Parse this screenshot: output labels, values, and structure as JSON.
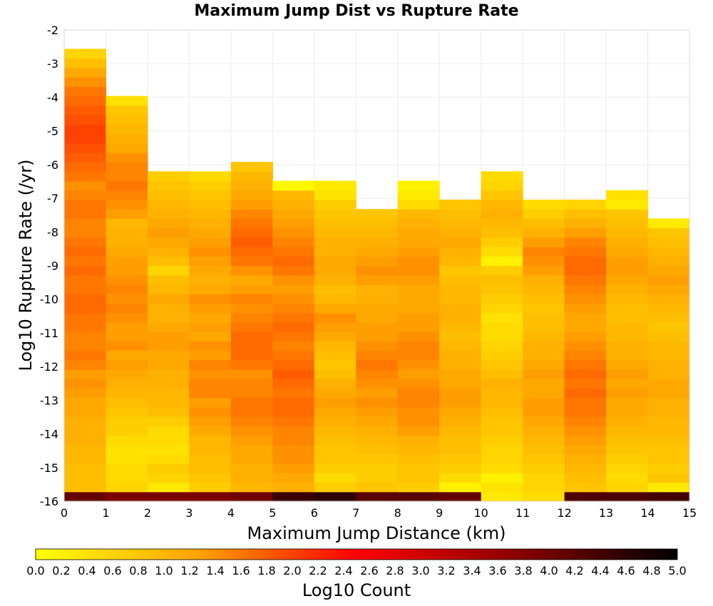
{
  "chart_data": {
    "type": "heatmap",
    "title": "Maximum Jump Dist vs Rupture Rate",
    "xlabel": "Maximum Jump Distance (km)",
    "ylabel": "Log10 Rupture Rate (/yr)",
    "xlim": [
      0,
      15
    ],
    "ylim": [
      -16,
      -2
    ],
    "x_ticks": [
      "0",
      "1",
      "2",
      "3",
      "4",
      "5",
      "6",
      "7",
      "8",
      "9",
      "10",
      "11",
      "12",
      "13",
      "14",
      "15"
    ],
    "y_ticks": [
      "-2",
      "-3",
      "-4",
      "-5",
      "-6",
      "-7",
      "-8",
      "-9",
      "-10",
      "-11",
      "-12",
      "-13",
      "-14",
      "-15",
      "-16"
    ],
    "grid": true,
    "x_bin_width_km": 1,
    "y_bin_height_log10": 0.28,
    "y_first_bin_bottom": -16,
    "colorbar": {
      "label": "Log10 Count",
      "min": 0.0,
      "max": 5.0,
      "ticks": [
        "0.0",
        "0.2",
        "0.4",
        "0.6",
        "0.8",
        "1.0",
        "1.2",
        "1.4",
        "1.6",
        "1.8",
        "2.0",
        "2.2",
        "2.4",
        "2.6",
        "2.8",
        "3.0",
        "3.2",
        "3.4",
        "3.6",
        "3.8",
        "4.0",
        "4.2",
        "4.4",
        "4.6",
        "4.8",
        "5.0"
      ],
      "colors": [
        "#ffff00",
        "#ffa500",
        "#ff0000",
        "#8b0000",
        "#000000"
      ]
    },
    "columns": [
      {
        "x_start": 0,
        "counts": [
          4.1,
          0.9,
          0.9,
          0.9,
          1.0,
          1.0,
          1.1,
          1.1,
          1.1,
          1.2,
          1.2,
          1.3,
          1.4,
          1.3,
          1.5,
          1.6,
          1.5,
          1.5,
          1.6,
          1.6,
          1.7,
          1.7,
          1.6,
          1.6,
          1.7,
          1.6,
          1.7,
          1.6,
          1.5,
          1.5,
          1.6,
          1.6,
          1.5,
          1.4,
          1.6,
          1.7,
          1.8,
          1.9,
          2.0,
          2.0,
          1.9,
          1.8,
          1.7,
          1.6,
          1.4,
          1.2,
          0.9,
          0.6
        ]
      },
      {
        "x_start": 1,
        "counts": [
          3.9,
          0.6,
          0.5,
          0.5,
          0.4,
          0.4,
          0.5,
          0.7,
          0.7,
          0.8,
          0.9,
          1.0,
          1.1,
          1.2,
          1.3,
          1.2,
          1.4,
          1.3,
          1.3,
          1.4,
          1.5,
          1.4,
          1.5,
          1.4,
          1.3,
          1.3,
          1.2,
          1.1,
          1.1,
          1.0,
          1.3,
          1.4,
          1.5,
          1.6,
          1.5,
          1.5,
          1.4,
          1.2,
          1.1,
          1.0,
          0.9,
          0.8,
          0.4
        ]
      },
      {
        "x_start": 2,
        "counts": [
          3.9,
          0.3,
          0.6,
          0.7,
          0.5,
          0.4,
          0.5,
          0.5,
          0.7,
          0.9,
          1.0,
          1.0,
          1.1,
          1.1,
          1.2,
          1.2,
          1.3,
          1.3,
          1.2,
          1.1,
          1.1,
          1.2,
          1.0,
          0.9,
          0.6,
          0.9,
          1.1,
          1.2,
          1.3,
          1.2,
          1.1,
          1.0,
          0.9,
          0.8,
          0.7
        ]
      },
      {
        "x_start": 3,
        "counts": [
          3.9,
          0.7,
          0.8,
          0.9,
          0.9,
          1.0,
          1.0,
          1.2,
          1.3,
          1.4,
          1.3,
          1.5,
          1.5,
          1.4,
          1.5,
          1.3,
          1.4,
          1.2,
          1.3,
          1.2,
          1.3,
          1.4,
          1.2,
          1.1,
          1.2,
          1.3,
          1.4,
          1.3,
          1.2,
          1.1,
          1.0,
          0.9,
          0.8,
          0.7,
          0.5
        ]
      },
      {
        "x_start": 4,
        "counts": [
          4.0,
          1.0,
          1.1,
          1.1,
          1.2,
          1.2,
          1.3,
          1.4,
          1.5,
          1.6,
          1.6,
          1.5,
          1.5,
          1.4,
          1.6,
          1.7,
          1.7,
          1.7,
          1.6,
          1.5,
          1.4,
          1.5,
          1.3,
          1.2,
          1.4,
          1.6,
          1.7,
          1.8,
          1.7,
          1.6,
          1.5,
          1.3,
          1.2,
          1.1,
          1.0,
          0.8
        ]
      },
      {
        "x_start": 5,
        "counts": [
          4.5,
          1.1,
          1.2,
          1.3,
          1.4,
          1.4,
          1.5,
          1.5,
          1.6,
          1.7,
          1.7,
          1.6,
          1.7,
          1.8,
          1.7,
          1.6,
          1.5,
          1.6,
          1.7,
          1.6,
          1.5,
          1.4,
          1.3,
          1.4,
          1.6,
          1.7,
          1.6,
          1.5,
          1.4,
          1.3,
          1.2,
          1.1,
          1.0,
          0.1
        ]
      },
      {
        "x_start": 6,
        "counts": [
          4.6,
          0.7,
          0.5,
          0.7,
          0.8,
          0.8,
          0.9,
          1.0,
          1.1,
          1.2,
          1.3,
          1.2,
          1.1,
          0.9,
          0.8,
          0.9,
          1.0,
          1.2,
          1.3,
          1.4,
          1.2,
          1.0,
          0.9,
          1.1,
          1.2,
          1.2,
          1.1,
          1.1,
          1.0,
          0.9,
          0.8,
          0.7,
          0.4,
          0.3
        ]
      },
      {
        "x_start": 7,
        "counts": [
          4.2,
          0.8,
          0.7,
          0.7,
          0.8,
          0.9,
          1.0,
          1.1,
          1.2,
          1.3,
          1.4,
          1.3,
          1.4,
          1.5,
          1.6,
          1.5,
          1.4,
          1.3,
          1.3,
          1.2,
          1.2,
          1.1,
          1.1,
          1.3,
          1.4,
          1.3,
          1.2,
          1.1,
          1.0,
          0.9,
          0.8
        ]
      },
      {
        "x_start": 8,
        "counts": [
          4.2,
          0.7,
          0.8,
          0.8,
          0.9,
          1.0,
          1.1,
          1.3,
          1.4,
          1.4,
          1.5,
          1.5,
          1.4,
          1.3,
          1.4,
          1.5,
          1.5,
          1.4,
          1.3,
          1.3,
          1.2,
          1.2,
          1.2,
          1.3,
          1.4,
          1.4,
          1.3,
          1.2,
          1.2,
          1.1,
          1.0,
          0.5,
          0.3,
          0.2
        ]
      },
      {
        "x_start": 9,
        "counts": [
          4.1,
          0.2,
          0.5,
          0.7,
          0.8,
          0.9,
          0.9,
          1.0,
          1.1,
          1.2,
          1.3,
          1.3,
          1.2,
          1.2,
          1.1,
          1.1,
          1.0,
          0.9,
          1.0,
          1.1,
          1.1,
          1.0,
          1.0,
          0.9,
          0.8,
          1.0,
          1.1,
          1.2,
          1.1,
          1.0,
          0.9,
          0.8
        ]
      },
      {
        "x_start": 10,
        "counts": [
          0.3,
          0.4,
          0.2,
          0.5,
          0.6,
          0.6,
          0.7,
          0.8,
          0.8,
          0.9,
          1.0,
          1.0,
          1.1,
          0.9,
          0.8,
          0.7,
          0.6,
          0.5,
          0.5,
          0.4,
          0.6,
          0.7,
          0.8,
          0.9,
          0.7,
          0.2,
          0.5,
          0.7,
          0.9,
          1.0,
          1.1,
          1.0,
          0.8,
          0.6,
          0.5
        ]
      },
      {
        "x_start": 11,
        "counts": [
          0.5,
          0.6,
          0.6,
          0.7,
          0.8,
          0.9,
          1.0,
          1.1,
          1.2,
          1.3,
          1.3,
          1.2,
          1.2,
          1.3,
          1.2,
          1.1,
          1.1,
          1.0,
          0.9,
          0.9,
          0.8,
          0.9,
          1.0,
          1.1,
          1.3,
          1.4,
          1.5,
          1.3,
          1.1,
          0.9,
          0.7,
          0.5
        ]
      },
      {
        "x_start": 12,
        "counts": [
          4.3,
          0.8,
          0.9,
          1.0,
          1.1,
          1.2,
          1.3,
          1.4,
          1.5,
          1.6,
          1.6,
          1.7,
          1.6,
          1.7,
          1.6,
          1.5,
          1.4,
          1.3,
          1.2,
          1.2,
          1.3,
          1.4,
          1.5,
          1.6,
          1.7,
          1.7,
          1.6,
          1.5,
          1.3,
          1.1,
          0.9,
          0.6
        ]
      },
      {
        "x_start": 13,
        "counts": [
          4.3,
          0.6,
          0.5,
          0.6,
          0.7,
          0.8,
          0.9,
          1.0,
          1.1,
          1.2,
          1.2,
          1.3,
          1.2,
          1.3,
          1.2,
          1.1,
          1.1,
          1.0,
          1.0,
          0.9,
          0.9,
          1.0,
          1.1,
          1.2,
          1.3,
          1.3,
          1.2,
          1.1,
          1.0,
          0.9,
          0.8,
          0.3,
          0.4
        ]
      },
      {
        "x_start": 14,
        "counts": [
          4.4,
          0.3,
          0.8,
          0.7,
          0.8,
          0.8,
          0.9,
          1.0,
          1.0,
          1.1,
          1.1,
          1.2,
          1.2,
          1.1,
          1.1,
          1.0,
          1.0,
          0.9,
          0.8,
          0.9,
          1.0,
          1.1,
          1.2,
          1.3,
          1.2,
          1.1,
          1.0,
          0.9,
          0.8,
          0.3
        ]
      }
    ]
  }
}
